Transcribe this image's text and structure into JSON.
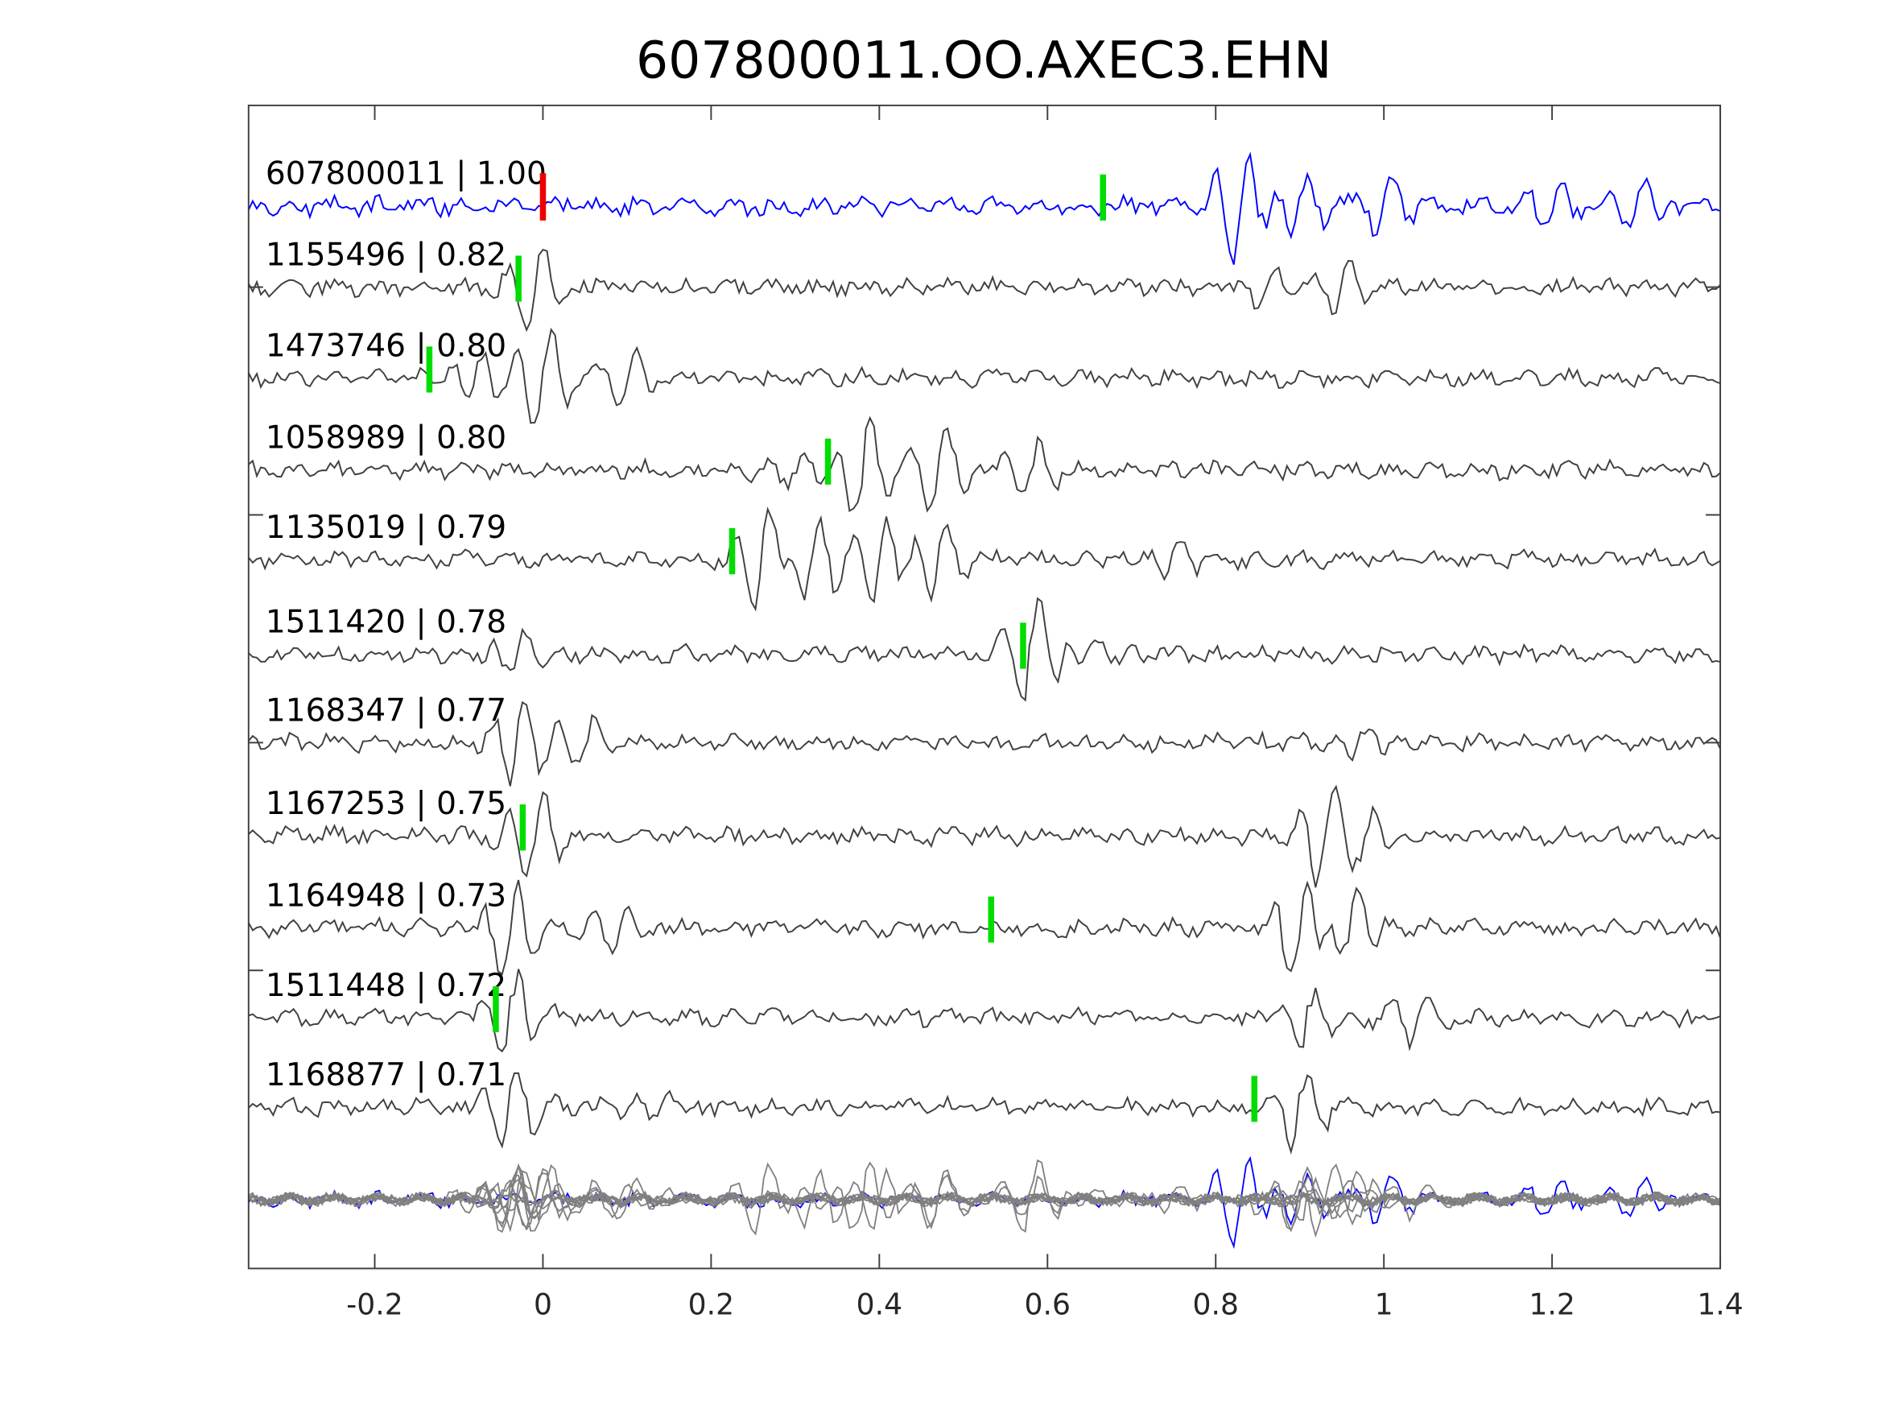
{
  "chart_data": {
    "type": "line",
    "title": "607800011.OO.AXEC3.EHN",
    "xlabel": "",
    "ylabel": "",
    "xlim": [
      -0.35,
      1.4
    ],
    "xticks": [
      -0.2,
      0,
      0.2,
      0.4,
      0.6,
      0.8,
      1,
      1.2,
      1.4
    ],
    "xtick_labels": [
      "-0.2",
      "0",
      "0.2",
      "0.4",
      "0.6",
      "0.8",
      "1",
      "1.2",
      "1.4"
    ],
    "grid": false,
    "colors": {
      "template": "#0000ff",
      "trace": "#404040",
      "stack": "#808080",
      "pick": "#00dd00",
      "reference_pick": "#ee0000"
    },
    "reference_pick_time": 0,
    "traces": [
      {
        "id": "607800011",
        "cc": "1.00",
        "label": "607800011 | 1.00",
        "pick": 0.666,
        "bursts": [
          [
            0.83,
            1.0
          ],
          [
            0.9,
            0.6
          ],
          [
            1.0,
            0.5
          ],
          [
            1.2,
            0.4
          ],
          [
            1.3,
            0.4
          ]
        ]
      },
      {
        "id": "1155496",
        "cc": "0.82",
        "label": "1155496 | 0.82",
        "pick": -0.029,
        "bursts": [
          [
            -0.01,
            0.8
          ],
          [
            0.86,
            0.5
          ],
          [
            0.95,
            0.5
          ]
        ]
      },
      {
        "id": "1473746",
        "cc": "0.80",
        "label": "1473746 | 0.80",
        "pick": -0.135,
        "bursts": [
          [
            -0.08,
            0.6
          ],
          [
            0.0,
            1.0
          ],
          [
            0.1,
            0.5
          ]
        ]
      },
      {
        "id": "1058989",
        "cc": "0.80",
        "label": "1058989 | 0.80",
        "pick": 0.339,
        "bursts": [
          [
            0.38,
            1.0
          ],
          [
            0.47,
            0.8
          ],
          [
            0.58,
            0.5
          ],
          [
            0.3,
            0.4
          ]
        ]
      },
      {
        "id": "1135019",
        "cc": "0.79",
        "label": "1135019 | 0.79",
        "pick": 0.225,
        "bursts": [
          [
            0.26,
            1.0
          ],
          [
            0.32,
            0.9
          ],
          [
            0.4,
            0.9
          ],
          [
            0.47,
            0.7
          ],
          [
            0.75,
            0.4
          ]
        ]
      },
      {
        "id": "1511420",
        "cc": "0.78",
        "label": "1511420 | 0.78",
        "pick": 0.571,
        "bursts": [
          [
            -0.03,
            0.5
          ],
          [
            0.58,
            1.0
          ],
          [
            0.65,
            0.4
          ]
        ]
      },
      {
        "id": "1168347",
        "cc": "0.77",
        "label": "1168347 | 0.77",
        "pick": null,
        "bursts": [
          [
            -0.03,
            1.0
          ],
          [
            0.05,
            0.4
          ],
          [
            0.97,
            0.4
          ]
        ]
      },
      {
        "id": "1167253",
        "cc": "0.75",
        "label": "1167253 | 0.75",
        "pick": -0.024,
        "bursts": [
          [
            -0.01,
            0.9
          ],
          [
            0.93,
            1.0
          ],
          [
            0.98,
            0.6
          ]
        ]
      },
      {
        "id": "1164948",
        "cc": "0.73",
        "label": "1164948 | 0.73",
        "pick": 0.533,
        "bursts": [
          [
            -0.04,
            1.0
          ],
          [
            0.09,
            0.5
          ],
          [
            0.9,
            1.0
          ],
          [
            0.96,
            0.8
          ]
        ]
      },
      {
        "id": "1511448",
        "cc": "0.72",
        "label": "1511448 | 0.72",
        "pick": -0.056,
        "bursts": [
          [
            -0.04,
            0.9
          ],
          [
            0.91,
            0.6
          ],
          [
            1.04,
            0.5
          ]
        ]
      },
      {
        "id": "1168877",
        "cc": "0.71",
        "label": "1168877 | 0.71",
        "pick": 0.846,
        "bursts": [
          [
            -0.04,
            0.8
          ],
          [
            0.9,
            0.8
          ],
          [
            0.14,
            0.3
          ]
        ]
      }
    ]
  }
}
